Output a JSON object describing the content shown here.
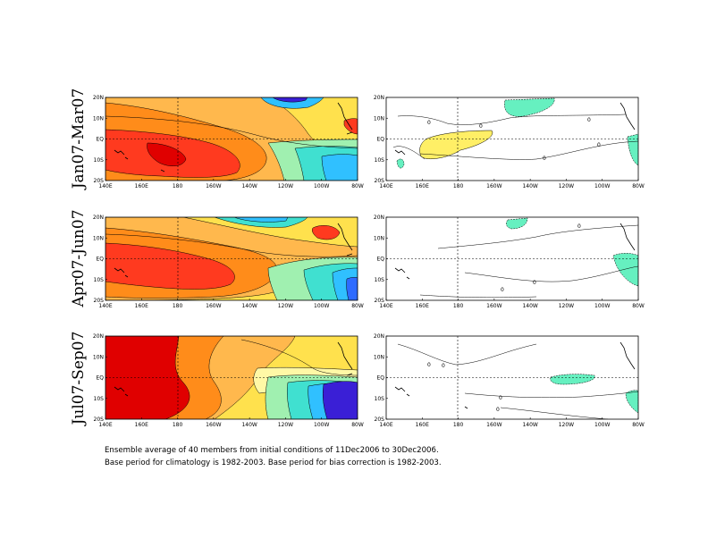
{
  "figure": {
    "rows": [
      {
        "label": "Jan07-Mar07"
      },
      {
        "label": "Apr07-Jun07"
      },
      {
        "label": "Jul07-Sep07"
      }
    ],
    "footnote": [
      "Ensemble average of 40 members from initial conditions of 11Dec2006 to 30Dec2006.",
      "Base period for climatology is 1982-2003. Base period for bias correction is 1982-2003."
    ]
  },
  "colors": {
    "dark_red": "#e00000",
    "red": "#ff3a1f",
    "orange": "#ff8c1a",
    "light_orange": "#ffb84d",
    "yellow": "#ffe14d",
    "pale_yellow": "#fff8a6",
    "light_green": "#a0f0b0",
    "aqua": "#40e0d0",
    "cyan": "#30c0ff",
    "blue": "#2e6bff",
    "dark_blue": "#3a1fd6",
    "anomaly_pos": "#ffef66",
    "anomaly_neg": "#66f0c0"
  },
  "chart_data": [
    {
      "type": "heatmap",
      "row": "Jan07-Mar07",
      "panel": "left",
      "xticks": [
        "140E",
        "160E",
        "180",
        "160W",
        "140W",
        "120W",
        "100W",
        "80W"
      ],
      "yticks": [
        "20N",
        "10N",
        "EQ",
        "10S",
        "20S"
      ],
      "xlim": [
        140,
        280
      ],
      "ylim": [
        -20,
        20
      ]
    },
    {
      "type": "heatmap",
      "row": "Jan07-Mar07",
      "panel": "right",
      "xticks": [
        "140E",
        "160E",
        "180",
        "160W",
        "140W",
        "120W",
        "100W",
        "80W"
      ],
      "yticks": [
        "20N",
        "10N",
        "EQ",
        "10S",
        "20S"
      ],
      "xlim": [
        140,
        280
      ],
      "ylim": [
        -20,
        20
      ],
      "contour_labels": [
        "0",
        "0",
        "0",
        "0",
        "0"
      ]
    },
    {
      "type": "heatmap",
      "row": "Apr07-Jun07",
      "panel": "left",
      "xticks": [
        "140E",
        "160E",
        "180",
        "160W",
        "140W",
        "120W",
        "100W",
        "80W"
      ],
      "yticks": [
        "20N",
        "10N",
        "EQ",
        "10S",
        "20S"
      ],
      "xlim": [
        140,
        280
      ],
      "ylim": [
        -20,
        20
      ]
    },
    {
      "type": "heatmap",
      "row": "Apr07-Jun07",
      "panel": "right",
      "xticks": [
        "140E",
        "160E",
        "180",
        "160W",
        "140W",
        "120W",
        "100W",
        "80W"
      ],
      "yticks": [
        "20N",
        "10N",
        "EQ",
        "10S",
        "20S"
      ],
      "xlim": [
        140,
        280
      ],
      "ylim": [
        -20,
        20
      ],
      "contour_labels": [
        "0",
        "0",
        "0"
      ]
    },
    {
      "type": "heatmap",
      "row": "Jul07-Sep07",
      "panel": "left",
      "xticks": [
        "140E",
        "160E",
        "180",
        "160W",
        "140W",
        "120W",
        "100W",
        "80W"
      ],
      "yticks": [
        "20N",
        "10N",
        "EQ",
        "10S",
        "20S"
      ],
      "xlim": [
        140,
        280
      ],
      "ylim": [
        -20,
        20
      ]
    },
    {
      "type": "heatmap",
      "row": "Jul07-Sep07",
      "panel": "right",
      "xticks": [
        "140E",
        "160E",
        "180",
        "160W",
        "140W",
        "120W",
        "100W",
        "80W"
      ],
      "yticks": [
        "20N",
        "10N",
        "EQ",
        "10S",
        "20S"
      ],
      "xlim": [
        140,
        280
      ],
      "ylim": [
        -20,
        20
      ],
      "contour_labels": [
        "0",
        "0",
        "0",
        "0"
      ]
    }
  ]
}
